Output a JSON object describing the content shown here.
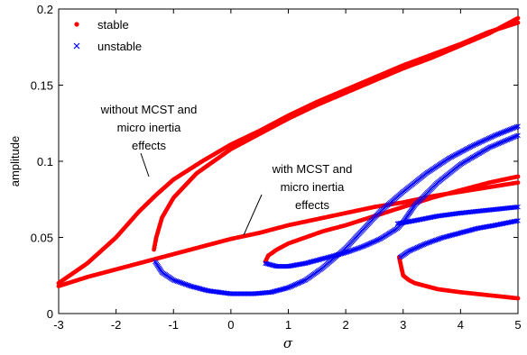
{
  "chart_data": {
    "type": "scatter",
    "xlabel": "σ",
    "ylabel": "amplitude",
    "xlim": [
      -3,
      5
    ],
    "ylim": [
      0,
      0.2
    ],
    "x_ticks": [
      "-3",
      "-2",
      "-1",
      "0",
      "1",
      "2",
      "3",
      "4",
      "5"
    ],
    "y_ticks": [
      "0",
      "0.05",
      "0.1",
      "0.15",
      "0.2"
    ],
    "grid": false,
    "legend": {
      "placement": "top-left",
      "entries": [
        {
          "label": "stable",
          "marker": "dot",
          "color": "#ff0000"
        },
        {
          "label": "unstable",
          "marker": "x",
          "color": "#0000ff"
        }
      ]
    },
    "annotations": [
      {
        "lines": [
          "without MCST and",
          "micro inertia",
          "effects"
        ],
        "points_to": [
          -1.4,
          0.075
        ]
      },
      {
        "lines": [
          "with MCST and",
          "micro inertia",
          "effects"
        ],
        "points_to": [
          0.3,
          0.052
        ]
      }
    ],
    "series": [
      {
        "name": "stable",
        "color": "#ff0000",
        "marker": "dot",
        "x": [
          -3,
          -2.5,
          -2,
          -1.6,
          -1.3,
          -1.0,
          -0.5,
          0,
          0.5,
          1,
          1.5,
          2,
          2.5,
          3,
          3.5,
          4,
          4.5,
          5
        ],
        "y": [
          0.02,
          0.033,
          0.05,
          0.067,
          0.078,
          0.088,
          0.1,
          0.111,
          0.12,
          0.13,
          0.139,
          0.147,
          0.155,
          0.163,
          0.17,
          0.177,
          0.185,
          0.191
        ]
      },
      {
        "name": "stable",
        "color": "#ff0000",
        "marker": "dot",
        "x": [
          -1.34,
          -1.3,
          -1.2,
          -1.0,
          -0.6,
          0,
          0.5,
          1,
          1.5,
          2,
          2.5,
          3,
          3.5,
          4,
          4.5,
          5
        ],
        "y": [
          0.042,
          0.05,
          0.063,
          0.076,
          0.092,
          0.108,
          0.118,
          0.128,
          0.137,
          0.145,
          0.153,
          0.161,
          0.168,
          0.176,
          0.184,
          0.194
        ]
      },
      {
        "name": "stable",
        "color": "#ff0000",
        "marker": "dot",
        "x": [
          -3,
          -2.5,
          -2,
          -1.5,
          -1,
          -0.5,
          0,
          0.5,
          1,
          1.5,
          2,
          2.5,
          3,
          3.5,
          4,
          4.5,
          5
        ],
        "y": [
          0.018,
          0.024,
          0.029,
          0.034,
          0.039,
          0.044,
          0.049,
          0.053,
          0.058,
          0.062,
          0.066,
          0.07,
          0.073,
          0.077,
          0.08,
          0.083,
          0.086
        ]
      },
      {
        "name": "stable",
        "color": "#ff0000",
        "marker": "dot",
        "x": [
          0.6,
          0.65,
          0.8,
          1.0,
          1.3,
          1.6,
          2.0,
          2.5,
          3.0,
          3.5,
          4.0,
          4.5,
          5.0
        ],
        "y": [
          0.034,
          0.038,
          0.042,
          0.046,
          0.05,
          0.054,
          0.058,
          0.064,
          0.07,
          0.076,
          0.081,
          0.086,
          0.09
        ]
      },
      {
        "name": "stable",
        "color": "#ff0000",
        "marker": "dot",
        "x": [
          2.93,
          2.97,
          3.0,
          3.1,
          3.2,
          3.4,
          3.6,
          3.8,
          4.0,
          4.5,
          5.0
        ],
        "y": [
          0.037,
          0.03,
          0.025,
          0.022,
          0.02,
          0.018,
          0.016,
          0.015,
          0.014,
          0.012,
          0.01
        ]
      },
      {
        "name": "unstable",
        "color": "#0000ff",
        "marker": "x",
        "x": [
          -1.32,
          -1.2,
          -1.0,
          -0.7,
          -0.4,
          0,
          0.4,
          0.7,
          1.0,
          1.3,
          1.6,
          2.0,
          2.3,
          2.6,
          3.0,
          3.4,
          3.8,
          4.2,
          4.6,
          5.0
        ],
        "y": [
          0.034,
          0.027,
          0.022,
          0.018,
          0.015,
          0.013,
          0.013,
          0.014,
          0.017,
          0.022,
          0.03,
          0.043,
          0.055,
          0.067,
          0.08,
          0.092,
          0.102,
          0.11,
          0.117,
          0.123
        ]
      },
      {
        "name": "unstable",
        "color": "#0000ff",
        "marker": "x",
        "x": [
          0.6,
          0.8,
          1.0,
          1.3,
          1.6,
          2.0,
          2.3,
          2.6,
          2.9,
          3.0,
          3.2,
          3.6,
          4.0,
          4.5,
          5.0
        ],
        "y": [
          0.033,
          0.031,
          0.031,
          0.033,
          0.036,
          0.04,
          0.044,
          0.049,
          0.056,
          0.06,
          0.071,
          0.086,
          0.098,
          0.109,
          0.117
        ]
      },
      {
        "name": "unstable",
        "color": "#0000ff",
        "marker": "x",
        "x": [
          2.95,
          3.1,
          3.4,
          3.7,
          4.0,
          4.3,
          4.6,
          5.0
        ],
        "y": [
          0.037,
          0.041,
          0.046,
          0.05,
          0.053,
          0.056,
          0.058,
          0.061
        ]
      },
      {
        "name": "unstable",
        "color": "#0000ff",
        "marker": "x",
        "x": [
          2.9,
          3.2,
          3.6,
          4.0,
          4.5,
          5.0
        ],
        "y": [
          0.059,
          0.061,
          0.064,
          0.066,
          0.068,
          0.07
        ]
      }
    ]
  }
}
